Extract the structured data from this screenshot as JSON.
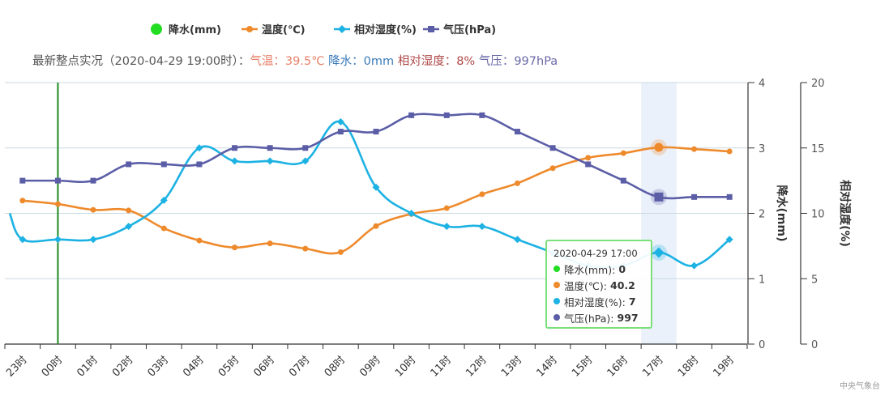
{
  "legend": [
    {
      "name": "降水(mm)",
      "color": "#22dd22",
      "icon": "circle"
    },
    {
      "name": "温度(℃)",
      "color": "#ee8a2c",
      "icon": "line-circle"
    },
    {
      "name": "相对湿度(%)",
      "color": "#1cb2e3",
      "icon": "line-diamond"
    },
    {
      "name": "气压(hPa)",
      "color": "#5b5ea6",
      "icon": "line-square"
    }
  ],
  "summary": {
    "prefix": "最新整点实况（2020-04-29 19:00时）：",
    "temp": "气温：39.5℃",
    "precip": "降水：0mm",
    "humidity": "相对湿度：8%",
    "pressure": "气压：997hPa",
    "colors": {
      "prefix": "#555555",
      "temp": "#e8826a",
      "precip": "#3a7ab8",
      "humidity": "#b04a4a",
      "pressure": "#6a6aa8"
    }
  },
  "tooltip": {
    "title": "2020-04-29 17:00",
    "rows": [
      {
        "label": "降水(mm):",
        "value": "0",
        "color": "#22dd22"
      },
      {
        "label": "温度(℃):",
        "value": "40.2",
        "color": "#ee8a2c"
      },
      {
        "label": "相对湿度(%):",
        "value": "7",
        "color": "#1cb2e3"
      },
      {
        "label": "气压(hPa):",
        "value": "997",
        "color": "#5b5ea6"
      }
    ]
  },
  "credit": "中央气象台",
  "chart_data": {
    "type": "line",
    "categories": [
      "23时",
      "00时",
      "01时",
      "02时",
      "03时",
      "04时",
      "05时",
      "06时",
      "07时",
      "08时",
      "09时",
      "10时",
      "11时",
      "12时",
      "13时",
      "14时",
      "15时",
      "16时",
      "17时",
      "18时",
      "19时"
    ],
    "highlight_category": "17时",
    "marker_category": "00时",
    "grid": true,
    "legend_position": "top",
    "axes": {
      "precip": {
        "title": "降水(mm)",
        "range": [
          0,
          4
        ],
        "ticks": [
          0,
          1,
          2,
          3,
          4
        ]
      },
      "humidity": {
        "title": "相对湿度(%)",
        "range": [
          0,
          20
        ],
        "ticks": [
          0,
          5,
          10,
          15,
          20
        ]
      },
      "temp": {
        "hidden": true,
        "range": [
          6.2,
          51.4
        ]
      },
      "pressure": {
        "hidden": true,
        "range": [
          988,
          1004
        ]
      }
    },
    "series": [
      {
        "name": "降水(mm)",
        "axis": "precip",
        "color": "#22dd22",
        "values": [
          0,
          0,
          0,
          0,
          0,
          0,
          0,
          0,
          0,
          0,
          0,
          0,
          0,
          0,
          0,
          0,
          0,
          0,
          0,
          0,
          0
        ]
      },
      {
        "name": "温度(℃)",
        "axis": "temp",
        "color": "#ee8a2c",
        "smooth": true,
        "values": [
          31.0,
          30.4,
          29.4,
          29.3,
          26.2,
          24.1,
          22.9,
          23.6,
          22.7,
          22.1,
          26.6,
          28.7,
          29.7,
          32.1,
          34.0,
          36.6,
          38.4,
          39.2,
          40.2,
          39.9,
          39.5
        ]
      },
      {
        "name": "相对湿度(%)",
        "axis": "humidity",
        "color": "#1cb2e3",
        "smooth": true,
        "values": [
          8,
          8,
          8,
          9,
          11,
          15,
          14,
          14,
          14,
          17,
          12,
          10,
          9,
          9,
          8,
          7,
          6,
          6,
          7,
          6,
          8
        ]
      },
      {
        "name": "气压(hPa)",
        "axis": "pressure",
        "color": "#5b5ea6",
        "smooth": true,
        "values": [
          998,
          998,
          998,
          999,
          999,
          999,
          1000,
          1000,
          1000,
          1001,
          1001,
          1002,
          1002,
          1002,
          1001,
          1000,
          999,
          998,
          997,
          997,
          997
        ]
      }
    ]
  }
}
